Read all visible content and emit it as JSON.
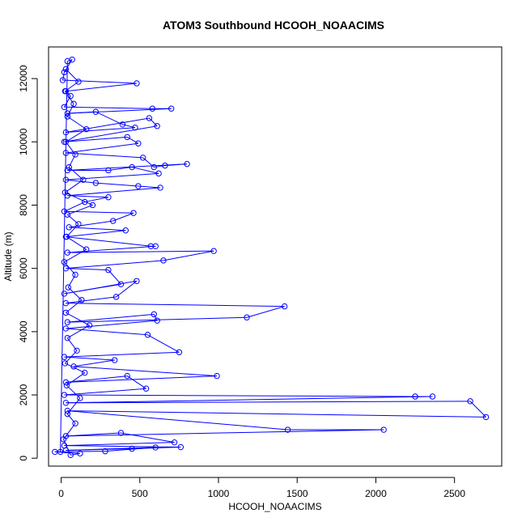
{
  "chart_data": {
    "type": "line",
    "title": "ATOM3 Southbound HCOOH_NOAACIMS",
    "xlabel": "HCOOH_NOAACIMS",
    "ylabel": "Altitude (m)",
    "xlim": [
      -80,
      2800
    ],
    "ylim": [
      -250,
      13000
    ],
    "x_ticks": [
      0,
      500,
      1000,
      1500,
      2000,
      2500
    ],
    "y_ticks": [
      0,
      2000,
      4000,
      6000,
      8000,
      10000,
      12000
    ],
    "grid": false,
    "legend": "none",
    "series": [
      {
        "color": "#0000ff",
        "marker": "open-circle",
        "points": [
          [
            -5,
            200
          ],
          [
            40,
            12550
          ],
          [
            70,
            12600
          ],
          [
            20,
            12200
          ],
          [
            10,
            11950
          ],
          [
            480,
            11850
          ],
          [
            30,
            11600
          ],
          [
            60,
            11450
          ],
          [
            20,
            11100
          ],
          [
            580,
            11050
          ],
          [
            700,
            11050
          ],
          [
            40,
            10900
          ],
          [
            220,
            10950
          ],
          [
            390,
            10550
          ],
          [
            470,
            10450
          ],
          [
            30,
            10300
          ],
          [
            560,
            10750
          ],
          [
            610,
            10500
          ],
          [
            20,
            10000
          ],
          [
            420,
            10150
          ],
          [
            490,
            9950
          ],
          [
            30,
            9650
          ],
          [
            520,
            9500
          ],
          [
            590,
            9200
          ],
          [
            660,
            9250
          ],
          [
            800,
            9300
          ],
          [
            40,
            9100
          ],
          [
            300,
            9100
          ],
          [
            450,
            9200
          ],
          [
            620,
            9000
          ],
          [
            30,
            8800
          ],
          [
            220,
            8700
          ],
          [
            490,
            8600
          ],
          [
            630,
            8550
          ],
          [
            40,
            8300
          ],
          [
            300,
            8250
          ],
          [
            150,
            8100
          ],
          [
            20,
            7800
          ],
          [
            460,
            7750
          ],
          [
            330,
            7500
          ],
          [
            50,
            7300
          ],
          [
            410,
            7200
          ],
          [
            30,
            7000
          ],
          [
            570,
            6700
          ],
          [
            600,
            6700
          ],
          [
            40,
            6500
          ],
          [
            970,
            6550
          ],
          [
            650,
            6250
          ],
          [
            30,
            6000
          ],
          [
            300,
            5950
          ],
          [
            380,
            5500
          ],
          [
            20,
            5200
          ],
          [
            480,
            5600
          ],
          [
            350,
            5100
          ],
          [
            30,
            4900
          ],
          [
            1420,
            4800
          ],
          [
            1180,
            4450
          ],
          [
            40,
            4300
          ],
          [
            590,
            4550
          ],
          [
            610,
            4350
          ],
          [
            30,
            4100
          ],
          [
            550,
            3900
          ],
          [
            750,
            3350
          ],
          [
            20,
            3200
          ],
          [
            340,
            3100
          ],
          [
            80,
            2900
          ],
          [
            990,
            2600
          ],
          [
            30,
            2400
          ],
          [
            420,
            2600
          ],
          [
            540,
            2200
          ],
          [
            20,
            2000
          ],
          [
            2250,
            1950
          ],
          [
            2360,
            1950
          ],
          [
            30,
            1750
          ],
          [
            2600,
            1800
          ],
          [
            2700,
            1300
          ],
          [
            40,
            1500
          ],
          [
            1440,
            900
          ],
          [
            2050,
            900
          ],
          [
            30,
            700
          ],
          [
            380,
            800
          ],
          [
            720,
            500
          ],
          [
            20,
            400
          ],
          [
            760,
            350
          ],
          [
            450,
            300
          ],
          [
            30,
            250
          ],
          [
            600,
            340
          ],
          [
            280,
            220
          ],
          [
            -40,
            200
          ],
          [
            120,
            150
          ],
          [
            60,
            100
          ],
          [
            15,
            600
          ],
          [
            90,
            1100
          ],
          [
            40,
            1400
          ],
          [
            120,
            1900
          ],
          [
            35,
            2300
          ],
          [
            150,
            2700
          ],
          [
            25,
            3000
          ],
          [
            100,
            3400
          ],
          [
            40,
            3800
          ],
          [
            180,
            4200
          ],
          [
            30,
            4600
          ],
          [
            130,
            5000
          ],
          [
            45,
            5400
          ],
          [
            90,
            5800
          ],
          [
            20,
            6200
          ],
          [
            160,
            6600
          ],
          [
            35,
            7000
          ],
          [
            110,
            7400
          ],
          [
            40,
            7700
          ],
          [
            200,
            8000
          ],
          [
            25,
            8400
          ],
          [
            140,
            8800
          ],
          [
            50,
            9200
          ],
          [
            90,
            9600
          ],
          [
            30,
            10000
          ],
          [
            160,
            10400
          ],
          [
            40,
            10800
          ],
          [
            80,
            11200
          ],
          [
            25,
            11600
          ],
          [
            110,
            11900
          ],
          [
            30,
            12300
          ]
        ]
      }
    ]
  }
}
